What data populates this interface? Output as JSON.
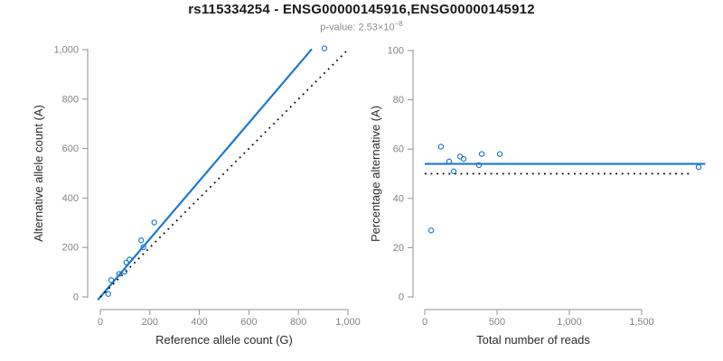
{
  "title": "rs115334254 - ENSG00000145916,ENSG00000145912",
  "subtitle": {
    "label": "p-value:",
    "value_mantissa": "2.53",
    "multiplier": "×",
    "base": "10",
    "exponent": "−8"
  },
  "colors": {
    "accent_blue": "#1e78d2",
    "axis_line_gray": "#929292",
    "tick_label_gray": "#838383",
    "axis_title_color": "#2b2b2b",
    "identity_line_black": "#000000",
    "background": "#ffffff"
  },
  "chart_data": [
    {
      "type": "scatter",
      "name": "allele-counts-scatter",
      "xlabel": "Reference allele count (G)",
      "ylabel": "Alternative allele count (A)",
      "xlim": [
        0,
        1000
      ],
      "ylim": [
        0,
        1000
      ],
      "grid": false,
      "legend": false,
      "xticks": {
        "values": [
          0,
          200,
          400,
          600,
          800,
          1000
        ],
        "labels": [
          "0",
          "200",
          "400",
          "600",
          "800",
          "1,000"
        ]
      },
      "yticks": {
        "values": [
          0,
          200,
          400,
          600,
          800,
          1000
        ],
        "labels": [
          "0",
          "200",
          "400",
          "600",
          "800",
          "1,000"
        ]
      },
      "points": [
        [
          32,
          12
        ],
        [
          44,
          68
        ],
        [
          76,
          93
        ],
        [
          98,
          102
        ],
        [
          105,
          139
        ],
        [
          118,
          151
        ],
        [
          165,
          229
        ],
        [
          174,
          201
        ],
        [
          218,
          301
        ],
        [
          905,
          1005
        ]
      ],
      "lines": [
        {
          "name": "fit-line",
          "style": "solid",
          "color": "blue",
          "from": [
            -10,
            -12
          ],
          "to": [
            854,
            1002
          ]
        },
        {
          "name": "identity-line",
          "style": "dotted",
          "color": "black",
          "from": [
            0,
            0
          ],
          "to": [
            1005,
            1005
          ]
        }
      ]
    },
    {
      "type": "scatter",
      "name": "percentage-alternative-scatter",
      "xlabel": "Total number of reads",
      "ylabel": "Percentage alternative (A)",
      "xlim": [
        0,
        1500
      ],
      "ylim": [
        0,
        100
      ],
      "grid": false,
      "legend": false,
      "xticks": {
        "values": [
          0,
          500,
          1000,
          1500
        ],
        "labels": [
          "0",
          "500",
          "1,000",
          "1,500"
        ]
      },
      "yticks": {
        "values": [
          0,
          20,
          40,
          60,
          80,
          100
        ],
        "labels": [
          "0",
          "20",
          "40",
          "60",
          "80",
          "100"
        ]
      },
      "points": [
        [
          44,
          27
        ],
        [
          112,
          61
        ],
        [
          169,
          55
        ],
        [
          200,
          51
        ],
        [
          244,
          57
        ],
        [
          269,
          56
        ],
        [
          375,
          53.5
        ],
        [
          394,
          58
        ],
        [
          519,
          58
        ],
        [
          1894,
          52.7
        ]
      ],
      "lines": [
        {
          "name": "mean-percentage-line",
          "style": "solid",
          "color": "blue",
          "from": [
            0,
            54
          ],
          "to": [
            1940,
            54
          ]
        },
        {
          "name": "expected-50-line",
          "style": "dotted",
          "color": "black",
          "from": [
            0,
            50
          ],
          "to": [
            1850,
            50
          ]
        }
      ]
    }
  ]
}
